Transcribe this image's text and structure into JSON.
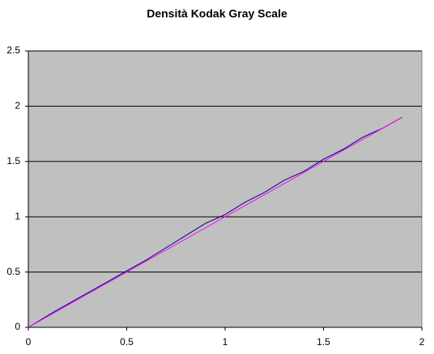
{
  "chart_data": {
    "type": "line",
    "title": "Densità Kodak Gray Scale",
    "series": [
      {
        "color": "#000080",
        "x": [
          0,
          0.14,
          0.2,
          0.3,
          0.4,
          0.5,
          0.6,
          0.7,
          0.8,
          0.9,
          1.0,
          1.1,
          1.2,
          1.3,
          1.4,
          1.5,
          1.6,
          1.7,
          1.8,
          1.9
        ],
        "values": [
          0,
          0.15,
          0.21,
          0.31,
          0.41,
          0.51,
          0.61,
          0.72,
          0.83,
          0.94,
          1.02,
          1.13,
          1.22,
          1.33,
          1.41,
          1.52,
          1.61,
          1.72,
          1.8,
          1.9
        ]
      },
      {
        "color": "#ff00ff",
        "x": [
          0,
          1.9
        ],
        "values": [
          0,
          1.9
        ]
      }
    ],
    "xlim": [
      0,
      2
    ],
    "xticks": [
      0,
      0.5,
      1,
      1.5,
      2
    ],
    "ylim": [
      0,
      2.5
    ],
    "yticks": [
      0,
      0.5,
      1,
      1.5,
      2,
      2.5
    ],
    "grid": true,
    "plot_background": "#c0c0c0"
  }
}
